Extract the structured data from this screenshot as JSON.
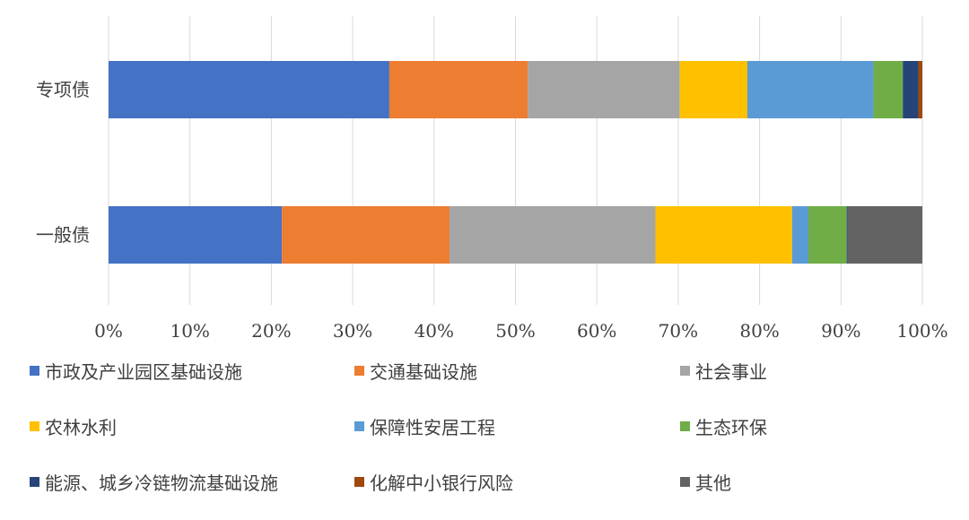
{
  "chart_data": {
    "type": "bar",
    "orientation": "horizontal",
    "stacked_percent": true,
    "categories": [
      "专项债",
      "一般债"
    ],
    "xlim": [
      0,
      100
    ],
    "x_ticks": [
      "0%",
      "10%",
      "20%",
      "30%",
      "40%",
      "50%",
      "60%",
      "70%",
      "80%",
      "90%",
      "100%"
    ],
    "grid": "vertical",
    "legend_position": "bottom",
    "series": [
      {
        "name": "市政及产业园区基础设施",
        "color": "#4472C4",
        "values": [
          34.5,
          21.3
        ]
      },
      {
        "name": "交通基础设施",
        "color": "#ED7D31",
        "values": [
          17.0,
          20.6
        ]
      },
      {
        "name": "社会事业",
        "color": "#A5A5A5",
        "values": [
          18.7,
          25.3
        ]
      },
      {
        "name": "农林水利",
        "color": "#FFC000",
        "values": [
          8.3,
          16.8
        ]
      },
      {
        "name": "保障性安居工程",
        "color": "#5B9BD5",
        "values": [
          15.5,
          2.0
        ]
      },
      {
        "name": "生态环保",
        "color": "#70AD47",
        "values": [
          3.6,
          4.7
        ]
      },
      {
        "name": "能源、城乡冷链物流基础设施",
        "color": "#264478",
        "values": [
          1.9,
          0.1
        ]
      },
      {
        "name": "化解中小银行风险",
        "color": "#9E480E",
        "values": [
          0.5,
          0
        ]
      },
      {
        "name": "其他",
        "color": "#636363",
        "values": [
          0,
          9.2
        ]
      }
    ]
  }
}
